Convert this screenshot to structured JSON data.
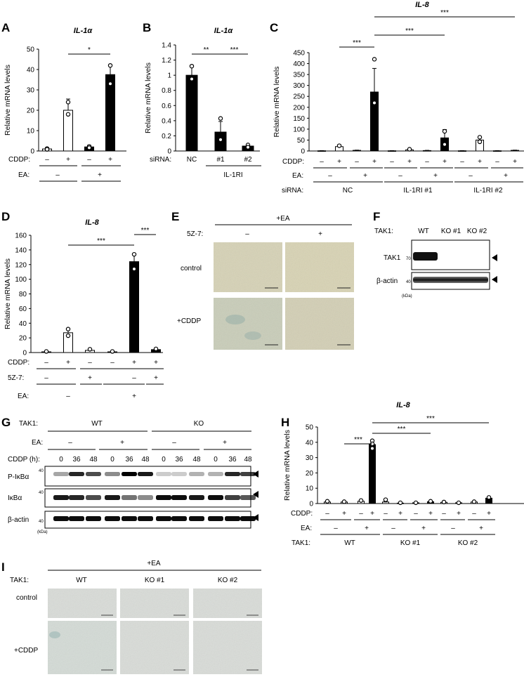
{
  "panels": {
    "A": "A",
    "B": "B",
    "C": "C",
    "D": "D",
    "E": "E",
    "F": "F",
    "G": "G",
    "H": "H",
    "I": "I"
  },
  "row_labels": {
    "cddp": "CDDP:",
    "ea": "EA:",
    "sirna": "siRNA:",
    "z57": "5Z-7:",
    "tak1": "TAK1:",
    "cddp_h": "CDDP (h):"
  },
  "signs": {
    "minus": "–",
    "plus": "+"
  },
  "sig": {
    "one": "*",
    "two": "**",
    "three": "***"
  },
  "chart_data": [
    {
      "type": "bar",
      "id": "A",
      "title": "IL-1α",
      "ylabel": "Relative mRNA levels",
      "ylim": [
        0,
        50
      ],
      "yticks": [
        "0",
        "10",
        "20",
        "30",
        "40",
        "50"
      ],
      "CDDP": [
        "–",
        "+",
        "–",
        "+"
      ],
      "EA": [
        "–",
        "+"
      ],
      "values": [
        1,
        20,
        2,
        37.5
      ],
      "errors": [
        0.6,
        5.5,
        0.8,
        4.5
      ],
      "fills": [
        "#ffffff",
        "#ffffff",
        "#000000",
        "#000000"
      ],
      "points": [
        [
          1.2,
          0.8
        ],
        [
          24,
          18
        ],
        [
          2.2,
          1.6
        ],
        [
          42,
          33
        ]
      ],
      "significance": [
        {
          "from": 1,
          "to": 3,
          "label": "*"
        }
      ]
    },
    {
      "type": "bar",
      "id": "B",
      "title": "IL-1α",
      "ylabel": "Relative mRNA levels",
      "ylim": [
        0,
        1.4
      ],
      "yticks": [
        "0",
        "0.2",
        "0.4",
        "0.6",
        "0.8",
        "1",
        "1.2",
        "1.4"
      ],
      "categories": [
        "NC",
        "#1",
        "#2"
      ],
      "group_label": "IL-1RI",
      "values": [
        1.0,
        0.25,
        0.065
      ],
      "errors": [
        0.13,
        0.14,
        0.02
      ],
      "fills": [
        "#000000",
        "#000000",
        "#000000"
      ],
      "points": [
        [
          1.12,
          0.95
        ],
        [
          0.43,
          0.15
        ],
        [
          0.08,
          0.05
        ]
      ],
      "significance": [
        {
          "from": 0,
          "to": 1,
          "label": "**"
        },
        {
          "from": 0,
          "to": 2,
          "label": "***"
        }
      ]
    },
    {
      "type": "bar",
      "id": "C",
      "title": "IL-8",
      "ylabel": "Relative mRNA levels",
      "ylim": [
        0,
        450
      ],
      "yticks": [
        "0",
        "50",
        "100",
        "150",
        "200",
        "250",
        "300",
        "350",
        "400",
        "450"
      ],
      "CDDP": [
        "–",
        "+",
        "–",
        "+",
        "–",
        "+",
        "–",
        "+",
        "–",
        "+",
        "–",
        "+"
      ],
      "EA": [
        "–",
        "+",
        "–",
        "+",
        "–",
        "+"
      ],
      "siRNA": [
        "NC",
        "IL-1RI #1",
        "IL-1RI #2"
      ],
      "values": [
        1,
        20,
        3,
        270,
        1,
        5,
        2,
        60,
        1,
        50,
        1,
        3
      ],
      "errors": [
        0.5,
        8,
        1,
        108,
        0.5,
        3,
        1,
        38,
        0.5,
        12,
        0.5,
        1
      ],
      "fills": [
        "#ffffff",
        "#ffffff",
        "#000000",
        "#000000",
        "#ffffff",
        "#ffffff",
        "#000000",
        "#000000",
        "#ffffff",
        "#ffffff",
        "#000000",
        "#000000"
      ],
      "points": [
        [],
        [
          24
        ],
        [],
        [
          420,
          220
        ],
        [],
        [
          8
        ],
        [],
        [
          90,
          30
        ],
        [],
        [
          63,
          42
        ],
        [],
        []
      ],
      "significance": [
        {
          "from": 1,
          "to": 3,
          "label": "***"
        },
        {
          "from": 3,
          "to": 7,
          "label": "***"
        },
        {
          "from": 3,
          "to": 11,
          "label": "***"
        }
      ]
    },
    {
      "type": "bar",
      "id": "D",
      "title": "IL-8",
      "ylabel": "Relative mRNA levels",
      "ylim": [
        0,
        160
      ],
      "yticks": [
        "0",
        "20",
        "40",
        "60",
        "80",
        "100",
        "120",
        "140",
        "160"
      ],
      "CDDP": [
        "–",
        "+",
        "–",
        "–",
        "+",
        "+"
      ],
      "5Z-7": [
        "–",
        "+",
        "–",
        "+"
      ],
      "EA": [
        "–",
        "+"
      ],
      "values": [
        1,
        27,
        3,
        1,
        124,
        4
      ],
      "errors": [
        0.5,
        6,
        1.5,
        0.5,
        10,
        1
      ],
      "fills": [
        "#ffffff",
        "#ffffff",
        "#ffffff",
        "#000000",
        "#000000",
        "#000000"
      ],
      "points": [
        [
          1.5
        ],
        [
          32,
          23
        ],
        [
          4.5
        ],
        [
          1.5
        ],
        [
          134,
          114
        ],
        [
          5
        ]
      ],
      "significance": [
        {
          "from": 1,
          "to": 4,
          "label": "***"
        },
        {
          "from": 4,
          "to": 5,
          "label": "***"
        }
      ]
    },
    {
      "type": "bar",
      "id": "H",
      "title": "IL-8",
      "ylabel": "Relative mRNA levels",
      "ylim": [
        0,
        50
      ],
      "yticks": [
        "0",
        "10",
        "20",
        "30",
        "40",
        "50"
      ],
      "CDDP": [
        "–",
        "+",
        "–",
        "+",
        "–",
        "+",
        "–",
        "+",
        "–",
        "+",
        "–",
        "+"
      ],
      "EA": [
        "–",
        "+",
        "–",
        "+",
        "–",
        "+"
      ],
      "TAK1": [
        "WT",
        "KO #1",
        "KO #2"
      ],
      "values": [
        1,
        1,
        1.5,
        38.5,
        1,
        0.3,
        0.5,
        1.2,
        0.8,
        0.5,
        1,
        3.5
      ],
      "errors": [
        0.4,
        0.3,
        0.5,
        3,
        0.6,
        0.2,
        0.2,
        0.4,
        0.3,
        0.2,
        0.3,
        0.8
      ],
      "fills": [
        "#ffffff",
        "#ffffff",
        "#ffffff",
        "#000000",
        "#ffffff",
        "#ffffff",
        "#ffffff",
        "#000000",
        "#ffffff",
        "#ffffff",
        "#ffffff",
        "#000000"
      ],
      "points": [
        [
          1.5
        ],
        [
          1.2
        ],
        [
          2
        ],
        [
          41,
          39,
          36
        ],
        [
          2.5
        ],
        [
          0.5
        ],
        [
          0.5
        ],
        [
          1.5
        ],
        [
          1
        ],
        [
          0.5
        ],
        [
          1.2
        ],
        [
          4
        ]
      ],
      "significance": [
        {
          "from": 1,
          "to": 3,
          "label": "***"
        },
        {
          "from": 3,
          "to": 7,
          "label": "***"
        },
        {
          "from": 3,
          "to": 11,
          "label": "***"
        }
      ]
    }
  ],
  "E": {
    "header": "+EA",
    "col_minus": "–",
    "col_plus": "+",
    "row1": "control",
    "row2": "+CDDP",
    "z_label": "5Z-7:"
  },
  "F": {
    "lanes": [
      "WT",
      "KO #1",
      "KO #2"
    ],
    "band1": "TAK1",
    "band2": "β-actin",
    "mw1": "70",
    "mw2": "40",
    "kda": "(kDa)"
  },
  "G": {
    "groups": [
      "WT",
      "KO"
    ],
    "times": [
      "0",
      "36",
      "48",
      "0",
      "36",
      "48",
      "0",
      "36",
      "48",
      "0",
      "36",
      "48"
    ],
    "bands": [
      "P-IκBα",
      "IκBα",
      "β-actin"
    ],
    "mw": "40",
    "kda": "(kDa)"
  },
  "I": {
    "header": "+EA",
    "cols": [
      "WT",
      "KO #1",
      "KO #2"
    ],
    "row1": "control",
    "row2": "+CDDP"
  }
}
